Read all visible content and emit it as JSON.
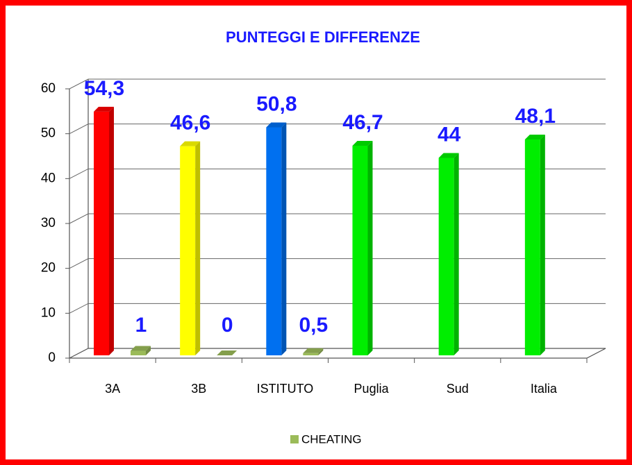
{
  "chart_data": {
    "type": "bar3d",
    "title": "PUNTEGGI E DIFFERENZE",
    "categories": [
      "3A",
      "3B",
      "ISTITUTO",
      "Puglia",
      "Sud",
      "Italia"
    ],
    "series": [
      {
        "values": [
          54.3,
          46.6,
          50.8,
          46.7,
          44,
          48.1
        ],
        "value_labels": [
          "54,3",
          "46,6",
          "50,8",
          "46,7",
          "44",
          "48,1"
        ],
        "colors": [
          "#ff0000",
          "#ffff00",
          "#0070f0",
          "#00ee00",
          "#00ee00",
          "#00ee00"
        ]
      },
      {
        "name": "CHEATING",
        "color": "#9bbb59",
        "values": [
          1,
          0,
          0.5,
          null,
          null,
          null
        ],
        "value_labels": [
          "1",
          "0",
          "0,5",
          null,
          null,
          null
        ]
      }
    ],
    "ylim": [
      0,
      60
    ],
    "yticks": [
      0,
      10,
      20,
      30,
      40,
      50,
      60
    ],
    "grid": true,
    "legend": "bottom"
  }
}
